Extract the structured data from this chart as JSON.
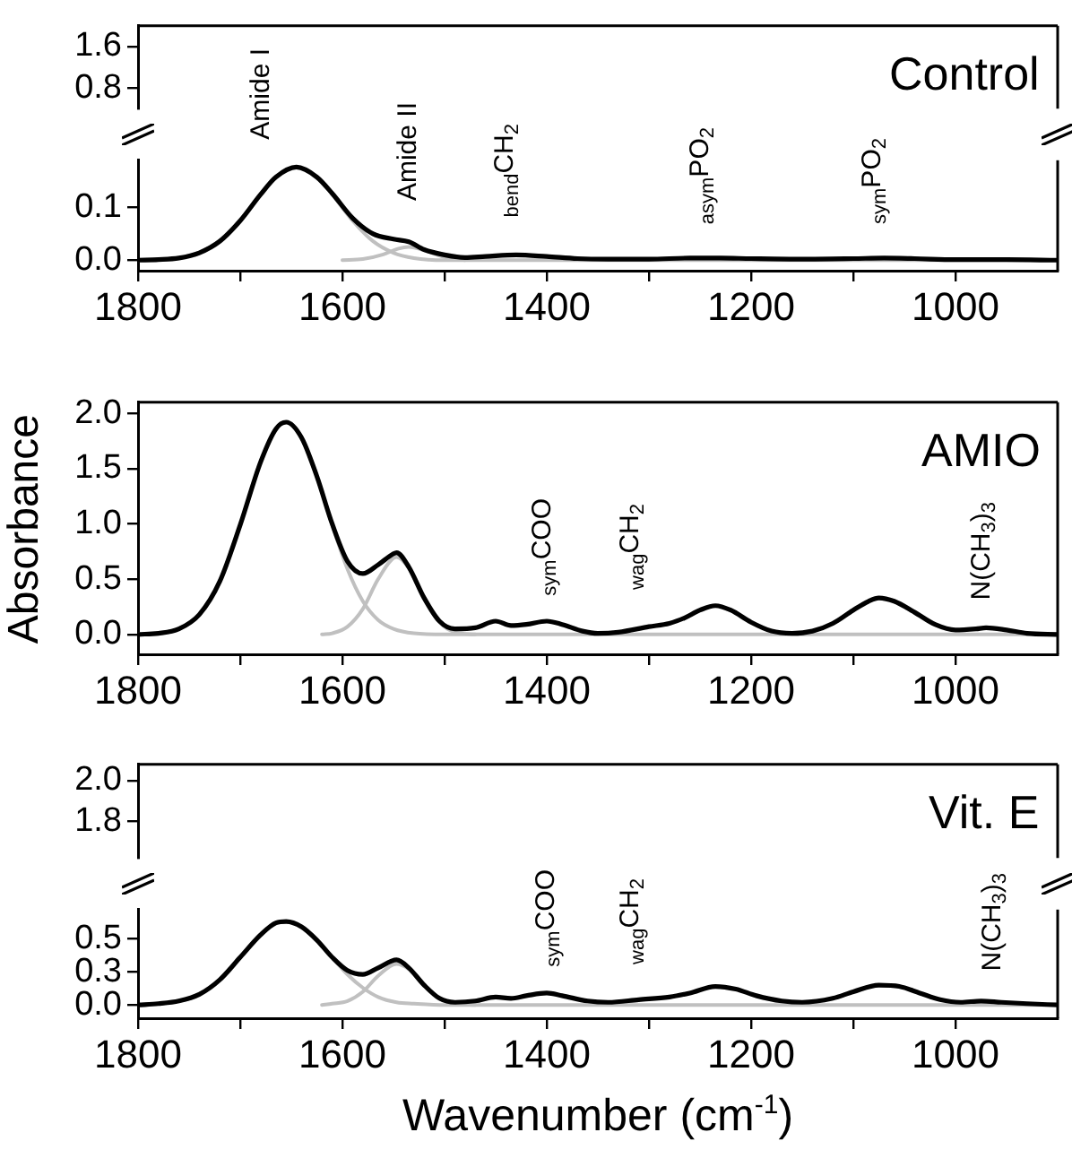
{
  "chart_data": [
    {
      "type": "line",
      "title": "Control",
      "xlim": [
        1800,
        900
      ],
      "ylim": [
        0.4,
        2.0
      ],
      "yticks": [
        0.8,
        1.6
      ],
      "tick_labels": "y"
    },
    {
      "type": "line",
      "xlim": [
        1800,
        900
      ],
      "xticks": [
        1800,
        {
          "value": 1700,
          "label": null
        },
        1600,
        {
          "value": 1500,
          "label": null
        },
        1400,
        {
          "value": 1300,
          "label": null
        },
        1200,
        {
          "value": 1100,
          "label": null
        },
        1000
      ],
      "ylim": [
        -0.02,
        0.19
      ],
      "yticks": [
        {
          "value": 0,
          "label": "0.0"
        },
        0.1
      ],
      "marker": "none",
      "annotations": [
        "Amide I",
        "Amide II",
        "$_{bend}$CH$_{2}$",
        "$_{asym}$PO$_{2}$",
        "$_{sym}$PO$_{2}$"
      ],
      "series": [
        {
          "color": "#000000",
          "x": [
            1800,
            1780,
            1760,
            1740,
            1720,
            1700,
            1680,
            1665,
            1645,
            1625,
            1610,
            1590,
            1570,
            1550,
            1535,
            1520,
            1500,
            1480,
            1460,
            1430,
            1400,
            1370,
            1340,
            1300,
            1260,
            1230,
            1200,
            1150,
            1100,
            1070,
            1040,
            1000,
            950,
            900
          ],
          "values": [
            0.0,
            0.001,
            0.004,
            0.014,
            0.036,
            0.075,
            0.125,
            0.158,
            0.177,
            0.158,
            0.127,
            0.08,
            0.05,
            0.04,
            0.035,
            0.02,
            0.01,
            0.005,
            0.007,
            0.01,
            0.007,
            0.003,
            0.002,
            0.002,
            0.004,
            0.004,
            0.003,
            0.002,
            0.003,
            0.004,
            0.003,
            0.001,
            0.001,
            0.0
          ]
        },
        {
          "color": "#c0c0c0",
          "x": [
            1800,
            1760,
            1720,
            1700,
            1680,
            1665,
            1645,
            1625,
            1610,
            1590,
            1570,
            1550,
            1530,
            1500,
            900
          ],
          "values": [
            0,
            0.004,
            0.036,
            0.075,
            0.125,
            0.158,
            0.177,
            0.158,
            0.125,
            0.075,
            0.036,
            0.014,
            0.004,
            0,
            0
          ]
        },
        {
          "color": "#c0c0c0",
          "x": [
            1600,
            1580,
            1560,
            1545,
            1535,
            1520,
            1500,
            1480
          ],
          "values": [
            0,
            0.002,
            0.011,
            0.022,
            0.025,
            0.019,
            0.006,
            0
          ]
        }
      ]
    },
    {
      "type": "line",
      "title": "AMIO",
      "ylabel": "Absorbance",
      "xlim": [
        1800,
        900
      ],
      "xticks": [
        1800,
        {
          "value": 1700,
          "label": null
        },
        1600,
        {
          "value": 1500,
          "label": null
        },
        1400,
        {
          "value": 1300,
          "label": null
        },
        1200,
        {
          "value": 1100,
          "label": null
        },
        1000
      ],
      "ylim": [
        -0.18,
        2.1
      ],
      "yticks": [
        {
          "value": 0,
          "label": "0.0"
        },
        0.5,
        {
          "value": 1,
          "label": "1.0"
        },
        1.5,
        {
          "value": 2,
          "label": "2.0"
        }
      ],
      "marker": "none",
      "annotations": [
        "$_{sym}$COO",
        "$_{wag}$CH$_{2}$",
        "N(CH$_{3}$)$_{3}$"
      ],
      "series": [
        {
          "color": "#000000",
          "x": [
            1800,
            1780,
            1760,
            1740,
            1720,
            1700,
            1680,
            1665,
            1655,
            1640,
            1625,
            1610,
            1595,
            1580,
            1565,
            1550,
            1547,
            1535,
            1520,
            1505,
            1490,
            1470,
            1450,
            1435,
            1420,
            1400,
            1385,
            1365,
            1350,
            1330,
            1300,
            1280,
            1265,
            1250,
            1235,
            1220,
            1200,
            1180,
            1160,
            1140,
            1120,
            1100,
            1085,
            1075,
            1060,
            1040,
            1020,
            1000,
            980,
            970,
            950,
            930,
            900
          ],
          "values": [
            0.0,
            0.01,
            0.05,
            0.18,
            0.48,
            0.99,
            1.56,
            1.86,
            1.92,
            1.78,
            1.43,
            1.0,
            0.66,
            0.55,
            0.63,
            0.73,
            0.74,
            0.61,
            0.33,
            0.12,
            0.05,
            0.06,
            0.12,
            0.08,
            0.09,
            0.12,
            0.09,
            0.03,
            0.01,
            0.02,
            0.07,
            0.1,
            0.15,
            0.22,
            0.26,
            0.22,
            0.11,
            0.03,
            0.01,
            0.03,
            0.1,
            0.22,
            0.3,
            0.33,
            0.3,
            0.2,
            0.09,
            0.04,
            0.05,
            0.06,
            0.04,
            0.01,
            0.0
          ]
        },
        {
          "color": "#c0c0c0",
          "x": [
            1800,
            1760,
            1740,
            1720,
            1700,
            1680,
            1665,
            1655,
            1640,
            1625,
            1610,
            1595,
            1580,
            1565,
            1550,
            1530,
            1500,
            900
          ],
          "values": [
            0.0,
            0.05,
            0.18,
            0.48,
            0.99,
            1.56,
            1.86,
            1.92,
            1.78,
            1.43,
            0.99,
            0.59,
            0.3,
            0.13,
            0.05,
            0.01,
            0,
            0
          ]
        },
        {
          "color": "#c0c0c0",
          "x": [
            1620,
            1610,
            1595,
            1580,
            1565,
            1547,
            1535,
            1520,
            1505,
            1490,
            1470
          ],
          "values": [
            0,
            0.01,
            0.07,
            0.23,
            0.5,
            0.7,
            0.6,
            0.33,
            0.11,
            0.02,
            0
          ]
        }
      ]
    },
    {
      "type": "line",
      "title": "Vit. E",
      "xlim": [
        1800,
        900
      ],
      "ylim": [
        1.62,
        2.08
      ],
      "yticks": [
        1.8,
        {
          "value": 2,
          "label": "2.0"
        }
      ],
      "tick_labels": "y"
    },
    {
      "type": "line",
      "xlabel": "Wavenumber (cm$^{-1}$)",
      "xlim": [
        1800,
        900
      ],
      "xticks": [
        1800,
        {
          "value": 1700,
          "label": null
        },
        1600,
        {
          "value": 1500,
          "label": null
        },
        1400,
        {
          "value": 1300,
          "label": null
        },
        1200,
        {
          "value": 1100,
          "label": null
        },
        1000
      ],
      "ylim": [
        -0.1,
        0.72
      ],
      "yticks": [
        {
          "value": 0,
          "label": "0.0"
        },
        {
          "value": 0.25,
          "label": "0.3"
        },
        0.5
      ],
      "marker": "none",
      "annotations": [
        "$_{sym}$COO",
        "$_{wag}$CH$_{2}$",
        "N(CH$_{3}$)$_{3}$"
      ],
      "series": [
        {
          "color": "#000000",
          "x": [
            1800,
            1780,
            1760,
            1740,
            1720,
            1700,
            1680,
            1665,
            1655,
            1640,
            1625,
            1610,
            1595,
            1580,
            1565,
            1547,
            1535,
            1520,
            1505,
            1490,
            1470,
            1450,
            1435,
            1420,
            1400,
            1385,
            1360,
            1340,
            1310,
            1280,
            1260,
            1235,
            1215,
            1195,
            1170,
            1150,
            1120,
            1100,
            1075,
            1055,
            1035,
            1015,
            995,
            975,
            955,
            930,
            900
          ],
          "values": [
            0.0,
            0.01,
            0.03,
            0.08,
            0.19,
            0.36,
            0.53,
            0.62,
            0.63,
            0.59,
            0.49,
            0.36,
            0.26,
            0.23,
            0.28,
            0.34,
            0.28,
            0.15,
            0.05,
            0.02,
            0.03,
            0.06,
            0.05,
            0.07,
            0.09,
            0.07,
            0.03,
            0.02,
            0.04,
            0.06,
            0.09,
            0.14,
            0.12,
            0.07,
            0.03,
            0.02,
            0.05,
            0.1,
            0.15,
            0.14,
            0.09,
            0.04,
            0.02,
            0.03,
            0.02,
            0.01,
            0.0
          ]
        },
        {
          "color": "#c0c0c0",
          "x": [
            1800,
            1760,
            1740,
            1720,
            1700,
            1680,
            1665,
            1655,
            1640,
            1625,
            1610,
            1595,
            1580,
            1565,
            1547,
            1530,
            1500,
            900
          ],
          "values": [
            0.0,
            0.03,
            0.08,
            0.19,
            0.36,
            0.53,
            0.62,
            0.63,
            0.59,
            0.49,
            0.36,
            0.23,
            0.13,
            0.06,
            0.02,
            0.01,
            0,
            0
          ]
        },
        {
          "color": "#c0c0c0",
          "x": [
            1620,
            1610,
            1595,
            1580,
            1565,
            1547,
            1535,
            1520,
            1505,
            1490,
            1470
          ],
          "values": [
            0,
            0.01,
            0.03,
            0.1,
            0.22,
            0.31,
            0.27,
            0.15,
            0.05,
            0.01,
            0
          ]
        }
      ]
    }
  ]
}
